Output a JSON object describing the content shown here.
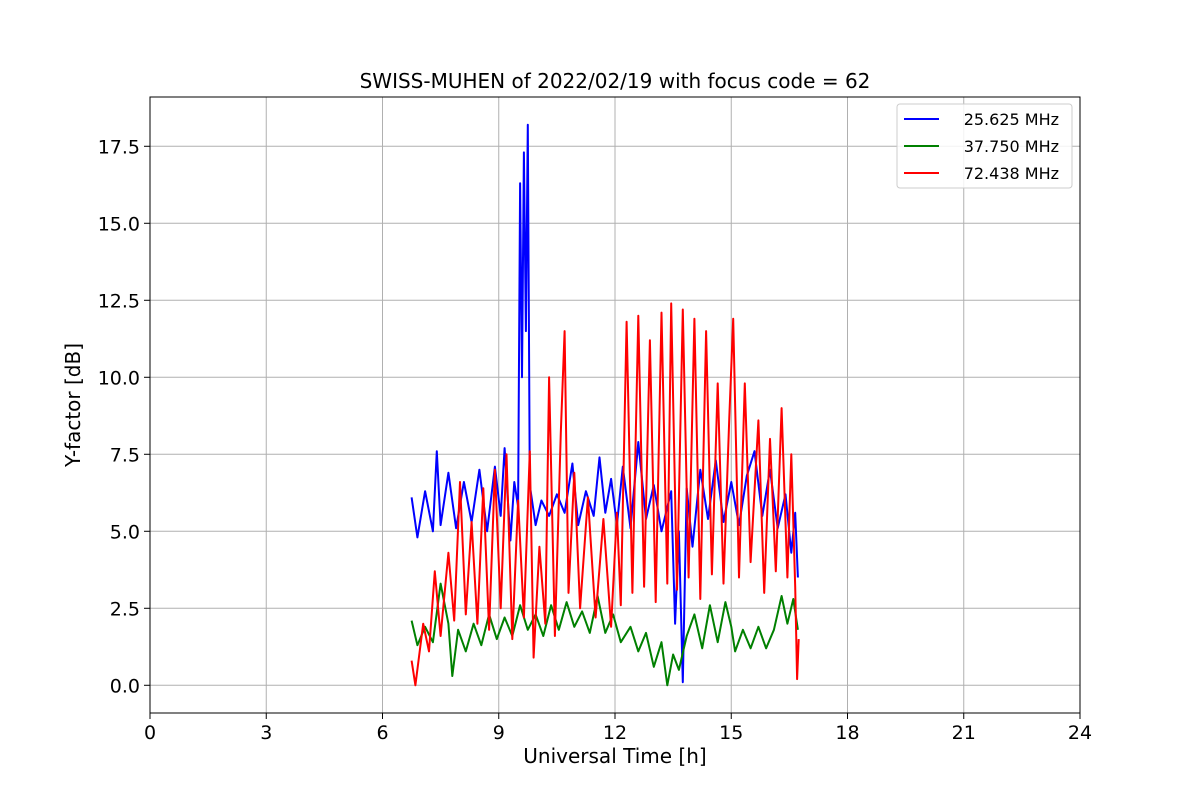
{
  "chart_data": {
    "type": "line",
    "title": "SWISS-MUHEN of 2022/02/19 with focus code = 62",
    "xlabel": "Universal Time [h]",
    "ylabel": "Y-factor [dB]",
    "xlim": [
      0,
      24
    ],
    "ylim": [
      -0.9,
      19.1
    ],
    "xticks": [
      0,
      3,
      6,
      9,
      12,
      15,
      18,
      21,
      24
    ],
    "xtick_labels": [
      "0",
      "3",
      "6",
      "9",
      "12",
      "15",
      "18",
      "21",
      "24"
    ],
    "yticks": [
      0.0,
      2.5,
      5.0,
      7.5,
      10.0,
      12.5,
      15.0,
      17.5
    ],
    "ytick_labels": [
      "0.0",
      "2.5",
      "5.0",
      "7.5",
      "10.0",
      "12.5",
      "15.0",
      "17.5"
    ],
    "grid": true,
    "legend_position": "top-right",
    "series": [
      {
        "name": "25.625 MHz",
        "color": "#0000ff",
        "points": [
          [
            6.75,
            6.1
          ],
          [
            6.9,
            4.8
          ],
          [
            7.1,
            6.3
          ],
          [
            7.3,
            5.0
          ],
          [
            7.4,
            7.6
          ],
          [
            7.5,
            5.2
          ],
          [
            7.7,
            6.9
          ],
          [
            7.9,
            5.1
          ],
          [
            8.1,
            6.6
          ],
          [
            8.3,
            5.3
          ],
          [
            8.5,
            7.0
          ],
          [
            8.7,
            5.0
          ],
          [
            8.9,
            7.1
          ],
          [
            9.05,
            5.5
          ],
          [
            9.15,
            7.7
          ],
          [
            9.3,
            4.7
          ],
          [
            9.4,
            6.6
          ],
          [
            9.5,
            5.8
          ],
          [
            9.55,
            16.3
          ],
          [
            9.6,
            10.0
          ],
          [
            9.65,
            17.3
          ],
          [
            9.7,
            11.5
          ],
          [
            9.75,
            18.2
          ],
          [
            9.8,
            6.5
          ],
          [
            9.95,
            5.2
          ],
          [
            10.1,
            6.0
          ],
          [
            10.3,
            5.5
          ],
          [
            10.5,
            6.2
          ],
          [
            10.7,
            5.6
          ],
          [
            10.9,
            7.2
          ],
          [
            11.05,
            5.2
          ],
          [
            11.25,
            6.3
          ],
          [
            11.45,
            5.5
          ],
          [
            11.6,
            7.4
          ],
          [
            11.75,
            5.6
          ],
          [
            11.9,
            6.7
          ],
          [
            12.05,
            5.2
          ],
          [
            12.2,
            7.1
          ],
          [
            12.4,
            5.1
          ],
          [
            12.6,
            7.9
          ],
          [
            12.8,
            5.4
          ],
          [
            13.0,
            6.5
          ],
          [
            13.2,
            5.0
          ],
          [
            13.45,
            6.3
          ],
          [
            13.55,
            2.0
          ],
          [
            13.65,
            5.0
          ],
          [
            13.75,
            0.1
          ],
          [
            13.85,
            6.4
          ],
          [
            14.0,
            4.5
          ],
          [
            14.2,
            7.0
          ],
          [
            14.4,
            5.4
          ],
          [
            14.6,
            7.3
          ],
          [
            14.8,
            5.3
          ],
          [
            15.0,
            6.6
          ],
          [
            15.2,
            5.2
          ],
          [
            15.4,
            6.8
          ],
          [
            15.6,
            7.6
          ],
          [
            15.8,
            5.5
          ],
          [
            16.0,
            7.0
          ],
          [
            16.2,
            5.1
          ],
          [
            16.4,
            6.2
          ],
          [
            16.55,
            4.3
          ],
          [
            16.65,
            5.6
          ],
          [
            16.72,
            3.5
          ]
        ]
      },
      {
        "name": "37.750 MHz",
        "color": "#008000",
        "points": [
          [
            6.75,
            2.1
          ],
          [
            6.9,
            1.3
          ],
          [
            7.1,
            1.9
          ],
          [
            7.3,
            1.4
          ],
          [
            7.5,
            3.3
          ],
          [
            7.7,
            2.0
          ],
          [
            7.8,
            0.3
          ],
          [
            7.95,
            1.8
          ],
          [
            8.15,
            1.1
          ],
          [
            8.35,
            2.0
          ],
          [
            8.55,
            1.3
          ],
          [
            8.75,
            2.3
          ],
          [
            8.95,
            1.5
          ],
          [
            9.15,
            2.2
          ],
          [
            9.35,
            1.6
          ],
          [
            9.55,
            2.6
          ],
          [
            9.75,
            1.8
          ],
          [
            9.95,
            2.3
          ],
          [
            10.15,
            1.6
          ],
          [
            10.35,
            2.6
          ],
          [
            10.55,
            1.8
          ],
          [
            10.75,
            2.7
          ],
          [
            10.95,
            1.9
          ],
          [
            11.15,
            2.4
          ],
          [
            11.35,
            1.7
          ],
          [
            11.55,
            2.9
          ],
          [
            11.75,
            1.7
          ],
          [
            11.95,
            2.3
          ],
          [
            12.15,
            1.4
          ],
          [
            12.4,
            1.9
          ],
          [
            12.6,
            1.1
          ],
          [
            12.8,
            1.7
          ],
          [
            13.0,
            0.6
          ],
          [
            13.2,
            1.4
          ],
          [
            13.35,
            0.0
          ],
          [
            13.5,
            1.0
          ],
          [
            13.65,
            0.5
          ],
          [
            13.85,
            1.6
          ],
          [
            14.05,
            2.3
          ],
          [
            14.25,
            1.2
          ],
          [
            14.45,
            2.6
          ],
          [
            14.65,
            1.4
          ],
          [
            14.85,
            2.7
          ],
          [
            15.0,
            1.9
          ],
          [
            15.1,
            1.1
          ],
          [
            15.3,
            1.8
          ],
          [
            15.5,
            1.2
          ],
          [
            15.7,
            1.9
          ],
          [
            15.9,
            1.2
          ],
          [
            16.1,
            1.8
          ],
          [
            16.3,
            2.9
          ],
          [
            16.45,
            2.0
          ],
          [
            16.6,
            2.8
          ],
          [
            16.72,
            1.8
          ]
        ]
      },
      {
        "name": "72.438 MHz",
        "color": "#ff0000",
        "points": [
          [
            6.75,
            0.8
          ],
          [
            6.85,
            0.0
          ],
          [
            7.05,
            2.0
          ],
          [
            7.2,
            1.1
          ],
          [
            7.35,
            3.7
          ],
          [
            7.5,
            1.6
          ],
          [
            7.7,
            4.3
          ],
          [
            7.85,
            2.1
          ],
          [
            8.0,
            6.6
          ],
          [
            8.15,
            2.3
          ],
          [
            8.3,
            5.3
          ],
          [
            8.45,
            2.0
          ],
          [
            8.6,
            6.4
          ],
          [
            8.75,
            1.8
          ],
          [
            8.9,
            7.0
          ],
          [
            9.05,
            2.5
          ],
          [
            9.2,
            7.5
          ],
          [
            9.35,
            1.5
          ],
          [
            9.5,
            6.0
          ],
          [
            9.65,
            2.2
          ],
          [
            9.8,
            7.6
          ],
          [
            9.9,
            0.9
          ],
          [
            10.05,
            4.5
          ],
          [
            10.2,
            2.0
          ],
          [
            10.3,
            10.0
          ],
          [
            10.45,
            1.6
          ],
          [
            10.6,
            8.2
          ],
          [
            10.7,
            11.5
          ],
          [
            10.8,
            3.0
          ],
          [
            10.95,
            6.9
          ],
          [
            11.1,
            2.5
          ],
          [
            11.3,
            6.1
          ],
          [
            11.5,
            2.2
          ],
          [
            11.7,
            5.4
          ],
          [
            11.9,
            1.9
          ],
          [
            12.05,
            5.6
          ],
          [
            12.15,
            2.6
          ],
          [
            12.3,
            11.8
          ],
          [
            12.45,
            3.0
          ],
          [
            12.6,
            12.0
          ],
          [
            12.75,
            3.2
          ],
          [
            12.9,
            11.2
          ],
          [
            13.05,
            2.7
          ],
          [
            13.2,
            12.1
          ],
          [
            13.35,
            3.3
          ],
          [
            13.45,
            12.4
          ],
          [
            13.6,
            3.1
          ],
          [
            13.75,
            12.2
          ],
          [
            13.9,
            3.5
          ],
          [
            14.05,
            11.9
          ],
          [
            14.2,
            2.8
          ],
          [
            14.35,
            11.5
          ],
          [
            14.5,
            3.6
          ],
          [
            14.65,
            9.8
          ],
          [
            14.8,
            3.3
          ],
          [
            14.95,
            8.7
          ],
          [
            15.05,
            11.9
          ],
          [
            15.2,
            3.5
          ],
          [
            15.35,
            9.8
          ],
          [
            15.5,
            4.0
          ],
          [
            15.7,
            8.6
          ],
          [
            15.85,
            3.0
          ],
          [
            16.0,
            8.0
          ],
          [
            16.15,
            3.7
          ],
          [
            16.3,
            9.0
          ],
          [
            16.45,
            3.5
          ],
          [
            16.55,
            7.5
          ],
          [
            16.65,
            3.2
          ],
          [
            16.7,
            0.2
          ],
          [
            16.74,
            1.5
          ]
        ]
      }
    ]
  }
}
